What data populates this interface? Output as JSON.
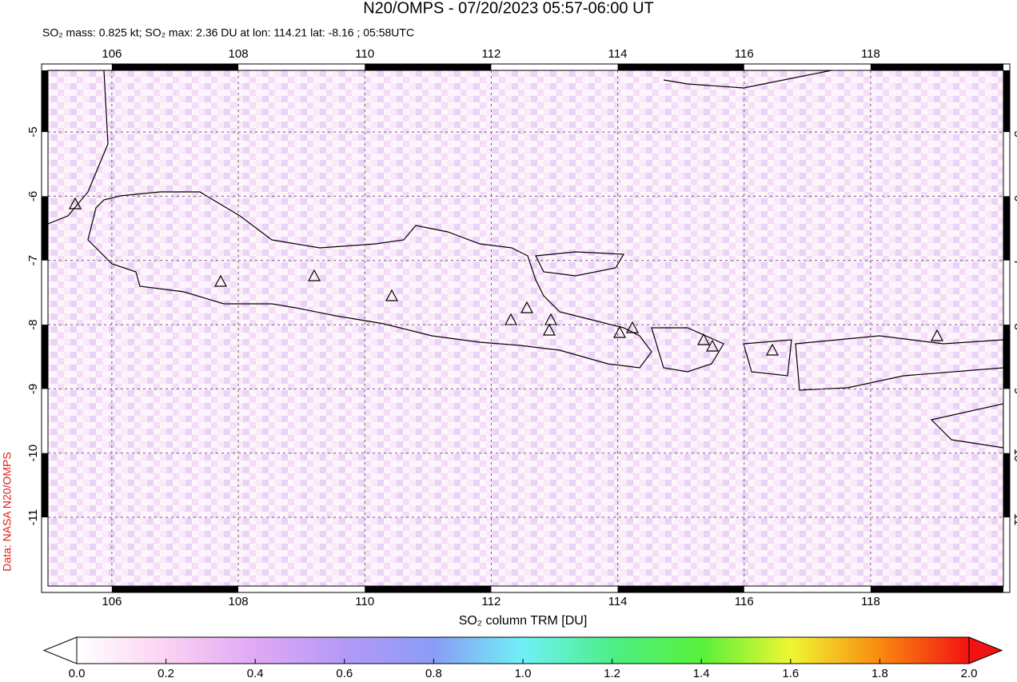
{
  "chart_data": {
    "type": "map",
    "title": "N20/OMPS - 07/20/2023 05:57-06:00 UT",
    "subtitle": "SO₂ mass: 0.825 kt; SO₂ max: 2.36 DU at lon: 114.21 lat: -8.16 ; 05:58UTC",
    "credit": "Data: NASA N20/OMPS",
    "xlim": [
      104.99,
      120.1
    ],
    "ylim": [
      -12.07,
      -4.04
    ],
    "xticks": [
      106,
      108,
      110,
      112,
      114,
      116,
      118
    ],
    "yticks": [
      -5,
      -6,
      -7,
      -8,
      -9,
      -10,
      -11
    ],
    "grid": true,
    "colorbar": {
      "label": "SO₂ column TRM [DU]",
      "lim": [
        0,
        2
      ],
      "ticks": [
        {
          "value": 0,
          "label": "0.0"
        },
        {
          "value": 0.2,
          "label": "0.2"
        },
        {
          "value": 0.4,
          "label": "0.4"
        },
        {
          "value": 0.6,
          "label": "0.6"
        },
        {
          "value": 0.8,
          "label": "0.8"
        },
        {
          "value": 1,
          "label": "1.0"
        },
        {
          "value": 1.2,
          "label": "1.2"
        },
        {
          "value": 1.4,
          "label": "1.4"
        },
        {
          "value": 1.6,
          "label": "1.6"
        },
        {
          "value": 1.8,
          "label": "1.8"
        },
        {
          "value": 2,
          "label": "2.0"
        }
      ],
      "colors": [
        "#ffffff",
        "#fbd2f2",
        "#e0a8f5",
        "#b49af7",
        "#8a9cf6",
        "#6ff0f7",
        "#4cef86",
        "#58f03a",
        "#eef732",
        "#f98a10",
        "#f31212"
      ]
    }
  }
}
